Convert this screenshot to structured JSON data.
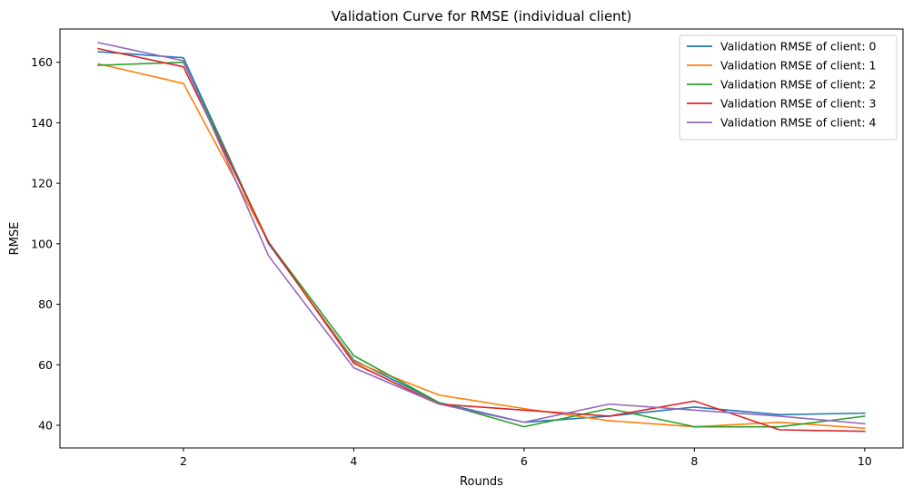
{
  "chart_data": {
    "type": "line",
    "title": "Validation Curve for RMSE (individual client)",
    "xlabel": "Rounds",
    "ylabel": "RMSE",
    "x": [
      1,
      2,
      3,
      4,
      5,
      6,
      7,
      8,
      9,
      10
    ],
    "xlim": [
      0.55,
      10.45
    ],
    "ylim": [
      32.5,
      171
    ],
    "xticks": [
      2,
      4,
      6,
      8,
      10
    ],
    "yticks": [
      40,
      60,
      80,
      100,
      120,
      140,
      160
    ],
    "grid": false,
    "legend_position": "top-right",
    "series": [
      {
        "name": "Validation RMSE of client: 0",
        "color": "#1f77b4",
        "values": [
          163.5,
          161.5,
          100.0,
          61.5,
          47.5,
          41.0,
          43.0,
          46.0,
          43.5,
          44.0
        ]
      },
      {
        "name": "Validation RMSE of client: 1",
        "color": "#ff7f0e",
        "values": [
          159.5,
          153.0,
          100.5,
          61.0,
          50.0,
          45.5,
          41.5,
          39.5,
          41.0,
          39.0
        ]
      },
      {
        "name": "Validation RMSE of client: 2",
        "color": "#2ca02c",
        "values": [
          159.0,
          160.0,
          100.5,
          63.0,
          47.5,
          39.5,
          45.5,
          39.5,
          39.5,
          43.0
        ]
      },
      {
        "name": "Validation RMSE of client: 3",
        "color": "#d62728",
        "values": [
          164.5,
          158.5,
          100.5,
          60.5,
          47.0,
          45.0,
          43.0,
          48.0,
          38.5,
          38.0
        ]
      },
      {
        "name": "Validation RMSE of client: 4",
        "color": "#9467bd",
        "values": [
          166.5,
          160.5,
          96.0,
          59.0,
          47.0,
          41.0,
          47.0,
          45.0,
          43.0,
          40.5
        ]
      }
    ]
  }
}
